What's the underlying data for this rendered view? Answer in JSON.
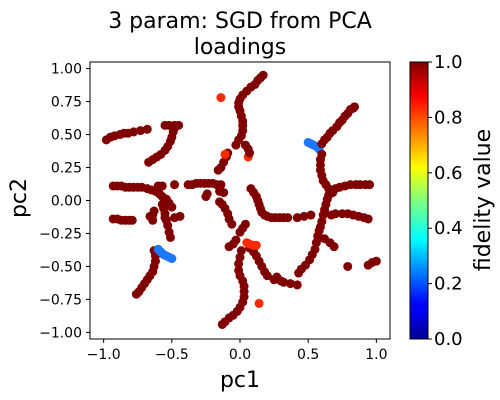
{
  "chart_data": {
    "type": "scatter",
    "title_lines": [
      "3 param:  SGD from PCA",
      "loadings"
    ],
    "xlabel": "pc1",
    "ylabel": "pc2",
    "xlim": [
      -1.1,
      1.1
    ],
    "ylim": [
      -1.05,
      1.05
    ],
    "xticks": [
      -1.0,
      -0.5,
      0.0,
      0.5,
      1.0
    ],
    "xtick_labels": [
      "−1.0",
      "−0.5",
      "0.0",
      "0.5",
      "1.0"
    ],
    "yticks": [
      1.0,
      0.75,
      0.5,
      0.25,
      0.0,
      -0.25,
      -0.5,
      -0.75,
      -1.0
    ],
    "ytick_labels": [
      "1.00",
      "0.75",
      "0.50",
      "0.25",
      "0.00",
      "−0.25",
      "−0.50",
      "−0.75",
      "−1.00"
    ],
    "grid": false,
    "colormap": "jet",
    "colorbar": {
      "label": "fidelity value",
      "range": [
        0.0,
        1.0
      ],
      "ticks": [
        1.0,
        0.8,
        0.6,
        0.4,
        0.2,
        0.0
      ],
      "tick_labels": [
        "1.0",
        "0.8",
        "0.6",
        "0.4",
        "0.2",
        "0.0"
      ]
    },
    "colors": {
      "high": "#800000",
      "mid_red": "#ff2a00",
      "blue": "#1e78ff"
    },
    "points": [
      [
        -0.98,
        0.46,
        0.99
      ],
      [
        -0.95,
        0.48,
        0.99
      ],
      [
        -0.92,
        0.49,
        0.99
      ],
      [
        -0.88,
        0.5,
        0.99
      ],
      [
        -0.85,
        0.51,
        0.99
      ],
      [
        -0.82,
        0.51,
        0.99
      ],
      [
        -0.78,
        0.52,
        0.99
      ],
      [
        -0.73,
        0.53,
        0.99
      ],
      [
        -0.68,
        0.54,
        0.99
      ],
      [
        -0.55,
        0.57,
        0.99
      ],
      [
        -0.52,
        0.57,
        0.99
      ],
      [
        -0.48,
        0.57,
        0.99
      ],
      [
        -0.45,
        0.57,
        0.99
      ],
      [
        -0.67,
        0.29,
        0.99
      ],
      [
        -0.64,
        0.31,
        0.99
      ],
      [
        -0.61,
        0.33,
        0.99
      ],
      [
        -0.58,
        0.35,
        0.99
      ],
      [
        -0.55,
        0.38,
        0.99
      ],
      [
        -0.53,
        0.41,
        0.99
      ],
      [
        -0.51,
        0.45,
        0.99
      ],
      [
        -0.5,
        0.48,
        0.99
      ],
      [
        -0.49,
        0.52,
        0.99
      ],
      [
        -0.48,
        0.55,
        0.99
      ],
      [
        -0.6,
        0.11,
        0.99
      ],
      [
        -0.57,
        0.11,
        0.99
      ],
      [
        -0.93,
        0.11,
        0.99
      ],
      [
        -0.9,
        0.11,
        0.99
      ],
      [
        -0.87,
        0.11,
        0.99
      ],
      [
        -0.84,
        0.1,
        0.99
      ],
      [
        -0.81,
        0.1,
        0.99
      ],
      [
        -0.78,
        0.1,
        0.99
      ],
      [
        -0.75,
        0.1,
        0.99
      ],
      [
        -0.72,
        0.1,
        0.99
      ],
      [
        -0.93,
        -0.14,
        0.99
      ],
      [
        -0.9,
        -0.14,
        0.99
      ],
      [
        -0.87,
        -0.15,
        0.99
      ],
      [
        -0.84,
        -0.15,
        0.99
      ],
      [
        -0.81,
        -0.15,
        0.99
      ],
      [
        -0.79,
        -0.15,
        0.99
      ],
      [
        -0.55,
        -0.13,
        0.99
      ],
      [
        -0.48,
        -0.13,
        0.99
      ],
      [
        -0.44,
        -0.12,
        0.99
      ],
      [
        -0.64,
        -0.15,
        0.99
      ],
      [
        -0.66,
        -0.12,
        0.99
      ],
      [
        -0.5,
        -0.05,
        0.99
      ],
      [
        -0.52,
        -0.02,
        0.99
      ],
      [
        -0.54,
        0.01,
        0.99
      ],
      [
        -0.57,
        0.03,
        0.99
      ],
      [
        -0.59,
        0.05,
        0.99
      ],
      [
        -0.62,
        0.07,
        0.99
      ],
      [
        -0.65,
        0.08,
        0.99
      ],
      [
        -0.68,
        0.09,
        0.99
      ],
      [
        -0.48,
        0.12,
        0.99
      ],
      [
        -0.38,
        0.12,
        0.99
      ],
      [
        -0.35,
        0.12,
        0.99
      ],
      [
        -0.32,
        0.13,
        0.99
      ],
      [
        -0.29,
        0.13,
        0.99
      ],
      [
        -0.26,
        0.13,
        0.99
      ],
      [
        -0.23,
        0.13,
        0.99
      ],
      [
        -0.2,
        0.13,
        0.99
      ],
      [
        -0.17,
        0.12,
        0.99
      ],
      [
        -0.14,
        0.12,
        0.99
      ],
      [
        -0.64,
        -0.11,
        0.99
      ],
      [
        -0.63,
        -0.08,
        0.99
      ],
      [
        -0.57,
        -0.03,
        0.99
      ],
      [
        -0.56,
        -0.06,
        0.99
      ],
      [
        -0.55,
        -0.1,
        0.99
      ],
      [
        -0.54,
        -0.15,
        0.99
      ],
      [
        -0.53,
        -0.19,
        0.99
      ],
      [
        -0.52,
        -0.24,
        0.99
      ],
      [
        -0.51,
        -0.28,
        0.99
      ],
      [
        -0.63,
        -0.38,
        0.99
      ],
      [
        -0.62,
        -0.42,
        0.99
      ],
      [
        -0.62,
        -0.46,
        0.99
      ],
      [
        -0.63,
        -0.5,
        0.99
      ],
      [
        -0.64,
        -0.54,
        0.99
      ],
      [
        -0.66,
        -0.57,
        0.99
      ],
      [
        -0.68,
        -0.6,
        0.99
      ],
      [
        -0.7,
        -0.63,
        0.99
      ],
      [
        -0.72,
        -0.66,
        0.99
      ],
      [
        -0.74,
        -0.69,
        0.99
      ],
      [
        -0.76,
        -0.71,
        0.99
      ],
      [
        -0.6,
        -0.37,
        0.2
      ],
      [
        -0.58,
        -0.39,
        0.2
      ],
      [
        -0.56,
        -0.41,
        0.2
      ],
      [
        -0.54,
        -0.42,
        0.2
      ],
      [
        -0.52,
        -0.43,
        0.2
      ],
      [
        -0.5,
        -0.44,
        0.2
      ],
      [
        0.5,
        0.44,
        0.2
      ],
      [
        0.52,
        0.43,
        0.2
      ],
      [
        0.54,
        0.42,
        0.2
      ],
      [
        0.56,
        0.41,
        0.2
      ],
      [
        0.58,
        0.39,
        0.2
      ],
      [
        -0.15,
        -0.01,
        0.99
      ],
      [
        -0.13,
        -0.03,
        0.99
      ],
      [
        -0.11,
        -0.06,
        0.99
      ],
      [
        -0.09,
        -0.1,
        0.99
      ],
      [
        -0.08,
        -0.14,
        0.99
      ],
      [
        -0.06,
        -0.18,
        0.99
      ],
      [
        -0.16,
        0.23,
        0.99
      ],
      [
        -0.14,
        0.25,
        0.99
      ],
      [
        -0.12,
        0.29,
        0.99
      ],
      [
        -0.1,
        0.33,
        0.99
      ],
      [
        -0.09,
        0.36,
        0.99
      ],
      [
        -0.24,
        0.05,
        0.99
      ],
      [
        -0.25,
        0.03,
        0.99
      ],
      [
        -0.15,
        0.07,
        0.99
      ],
      [
        -0.12,
        0.06,
        0.99
      ],
      [
        -0.14,
        0.78,
        0.9
      ],
      [
        -0.11,
        0.35,
        0.9
      ],
      [
        0.06,
        0.33,
        0.9
      ],
      [
        -0.03,
        0.42,
        0.99
      ],
      [
        -0.01,
        0.46,
        0.99
      ],
      [
        0.01,
        0.49,
        0.99
      ],
      [
        0.02,
        0.53,
        0.99
      ],
      [
        0.02,
        0.57,
        0.99
      ],
      [
        0.02,
        0.6,
        0.99
      ],
      [
        0.01,
        0.64,
        0.99
      ],
      [
        0.0,
        0.68,
        0.99
      ],
      [
        -0.01,
        0.71,
        0.99
      ],
      [
        -0.01,
        0.74,
        0.99
      ],
      [
        0.0,
        0.77,
        0.99
      ],
      [
        0.02,
        0.8,
        0.99
      ],
      [
        0.05,
        0.83,
        0.99
      ],
      [
        0.08,
        0.86,
        0.99
      ],
      [
        0.11,
        0.88,
        0.99
      ],
      [
        0.13,
        0.91,
        0.99
      ],
      [
        0.15,
        0.93,
        0.99
      ],
      [
        0.17,
        0.95,
        0.99
      ],
      [
        0.07,
        0.36,
        0.99
      ],
      [
        0.06,
        0.39,
        0.99
      ],
      [
        0.04,
        0.42,
        0.99
      ],
      [
        0.08,
        0.09,
        0.99
      ],
      [
        0.1,
        0.06,
        0.99
      ],
      [
        0.12,
        0.03,
        0.99
      ],
      [
        0.13,
        0.0,
        0.99
      ],
      [
        0.14,
        -0.03,
        0.99
      ],
      [
        0.15,
        -0.06,
        0.99
      ],
      [
        0.16,
        -0.09,
        0.99
      ],
      [
        0.18,
        -0.11,
        0.99
      ],
      [
        0.2,
        -0.12,
        0.99
      ],
      [
        0.23,
        -0.13,
        0.99
      ],
      [
        0.26,
        -0.13,
        0.99
      ],
      [
        0.29,
        -0.13,
        0.99
      ],
      [
        0.32,
        -0.13,
        0.99
      ],
      [
        0.35,
        -0.13,
        0.99
      ],
      [
        0.42,
        -0.13,
        0.99
      ],
      [
        0.47,
        -0.12,
        0.99
      ],
      [
        0.52,
        -0.11,
        0.99
      ],
      [
        0.61,
        -0.11,
        0.99
      ],
      [
        0.62,
        -0.07,
        0.99
      ],
      [
        0.63,
        -0.03,
        0.99
      ],
      [
        0.64,
        0.01,
        0.99
      ],
      [
        0.65,
        0.04,
        0.99
      ],
      [
        0.67,
        0.07,
        0.99
      ],
      [
        0.7,
        0.09,
        0.99
      ],
      [
        0.73,
        0.1,
        0.99
      ],
      [
        0.77,
        0.11,
        0.99
      ],
      [
        0.81,
        0.12,
        0.99
      ],
      [
        0.85,
        0.12,
        0.99
      ],
      [
        0.88,
        0.12,
        0.99
      ],
      [
        0.92,
        0.12,
        0.99
      ],
      [
        0.95,
        0.12,
        0.99
      ],
      [
        0.6,
        -0.16,
        0.99
      ],
      [
        0.59,
        -0.2,
        0.99
      ],
      [
        0.58,
        -0.23,
        0.99
      ],
      [
        0.57,
        -0.27,
        0.99
      ],
      [
        0.56,
        -0.32,
        0.99
      ],
      [
        0.55,
        -0.37,
        0.99
      ],
      [
        0.53,
        -0.41,
        0.99
      ],
      [
        0.51,
        -0.45,
        0.99
      ],
      [
        0.48,
        -0.49,
        0.99
      ],
      [
        0.45,
        -0.52,
        0.99
      ],
      [
        0.43,
        -0.55,
        0.99
      ],
      [
        0.58,
        -0.28,
        0.99
      ],
      [
        0.62,
        -0.29,
        0.99
      ],
      [
        0.66,
        -0.32,
        0.99
      ],
      [
        0.69,
        -0.35,
        0.99
      ],
      [
        0.6,
        0.35,
        0.99
      ],
      [
        0.59,
        0.31,
        0.99
      ],
      [
        0.59,
        0.27,
        0.99
      ],
      [
        0.59,
        0.23,
        0.99
      ],
      [
        0.6,
        0.19,
        0.99
      ],
      [
        0.61,
        0.15,
        0.99
      ],
      [
        0.63,
        0.12,
        0.99
      ],
      [
        0.65,
        0.09,
        0.99
      ],
      [
        0.68,
        0.06,
        0.99
      ],
      [
        0.6,
        0.43,
        0.99
      ],
      [
        0.62,
        0.46,
        0.99
      ],
      [
        0.64,
        0.48,
        0.99
      ],
      [
        0.66,
        0.51,
        0.99
      ],
      [
        0.68,
        0.53,
        0.99
      ],
      [
        0.71,
        0.56,
        0.99
      ],
      [
        0.73,
        0.59,
        0.99
      ],
      [
        0.75,
        0.61,
        0.99
      ],
      [
        0.77,
        0.64,
        0.99
      ],
      [
        0.79,
        0.66,
        0.99
      ],
      [
        0.81,
        0.69,
        0.99
      ],
      [
        0.83,
        0.7,
        0.99
      ],
      [
        0.84,
        0.71,
        0.99
      ],
      [
        0.67,
        -0.11,
        0.99
      ],
      [
        0.7,
        -0.1,
        0.99
      ],
      [
        0.75,
        -0.1,
        0.99
      ],
      [
        0.79,
        -0.1,
        0.99
      ],
      [
        0.83,
        -0.11,
        0.99
      ],
      [
        0.87,
        -0.12,
        0.99
      ],
      [
        0.91,
        -0.13,
        0.99
      ],
      [
        0.94,
        -0.14,
        0.99
      ],
      [
        0.79,
        -0.5,
        0.99
      ],
      [
        0.94,
        -0.49,
        0.99
      ],
      [
        0.97,
        -0.47,
        0.99
      ],
      [
        1.0,
        -0.46,
        0.99
      ],
      [
        0.3,
        -0.61,
        0.99
      ],
      [
        0.25,
        -0.6,
        0.99
      ],
      [
        0.2,
        -0.57,
        0.99
      ],
      [
        0.18,
        -0.54,
        0.99
      ],
      [
        0.16,
        -0.5,
        0.99
      ],
      [
        0.14,
        -0.46,
        0.99
      ],
      [
        0.12,
        -0.42,
        0.99
      ],
      [
        0.1,
        -0.39,
        0.99
      ],
      [
        0.07,
        -0.36,
        0.99
      ],
      [
        0.01,
        -0.38,
        0.99
      ],
      [
        0.0,
        -0.43,
        0.99
      ],
      [
        -0.01,
        -0.48,
        0.99
      ],
      [
        -0.01,
        -0.53,
        0.99
      ],
      [
        0.0,
        -0.57,
        0.99
      ],
      [
        0.02,
        -0.61,
        0.99
      ],
      [
        0.03,
        -0.65,
        0.99
      ],
      [
        0.03,
        -0.69,
        0.99
      ],
      [
        0.03,
        -0.73,
        0.99
      ],
      [
        0.02,
        -0.77,
        0.99
      ],
      [
        0.0,
        -0.81,
        0.99
      ],
      [
        -0.02,
        -0.84,
        0.99
      ],
      [
        -0.05,
        -0.87,
        0.99
      ],
      [
        -0.08,
        -0.89,
        0.99
      ],
      [
        -0.11,
        -0.92,
        0.99
      ],
      [
        -0.13,
        -0.94,
        0.99
      ],
      [
        -0.03,
        -0.3,
        0.99
      ],
      [
        -0.05,
        -0.33,
        0.99
      ],
      [
        -0.08,
        -0.35,
        0.99
      ],
      [
        0.0,
        -0.24,
        0.99
      ],
      [
        0.02,
        -0.21,
        0.99
      ],
      [
        0.04,
        -0.18,
        0.99
      ],
      [
        0.05,
        -0.32,
        0.9
      ],
      [
        0.07,
        -0.33,
        0.9
      ],
      [
        0.1,
        -0.34,
        0.9
      ],
      [
        0.12,
        -0.34,
        0.9
      ],
      [
        0.14,
        -0.78,
        0.9
      ],
      [
        0.27,
        -0.58,
        0.99
      ],
      [
        0.32,
        -0.62,
        0.99
      ],
      [
        0.37,
        -0.63,
        0.99
      ],
      [
        0.42,
        -0.64,
        0.99
      ]
    ]
  }
}
